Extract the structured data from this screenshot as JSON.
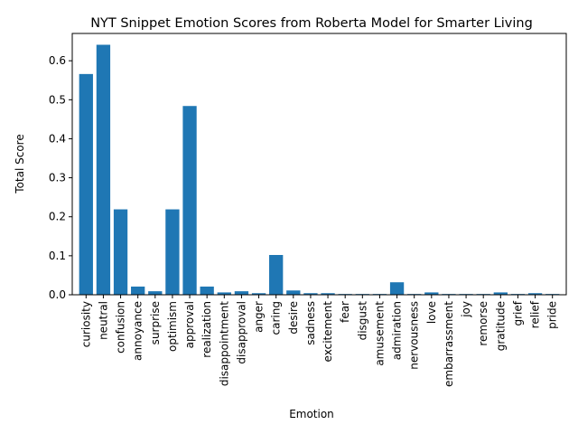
{
  "chart_data": {
    "type": "bar",
    "title": "NYT Snippet Emotion Scores from Roberta Model for Smarter Living",
    "xlabel": "Emotion",
    "ylabel": "Total Score",
    "ylim": [
      0,
      0.67
    ],
    "yticks": [
      "0.0",
      "0.1",
      "0.2",
      "0.3",
      "0.4",
      "0.5",
      "0.6"
    ],
    "grid": false,
    "bar_color": "#1f77b4",
    "categories": [
      "curiosity",
      "neutral",
      "confusion",
      "annoyance",
      "surprise",
      "optimism",
      "approval",
      "realization",
      "disappointment",
      "disapproval",
      "anger",
      "caring",
      "desire",
      "sadness",
      "excitement",
      "fear",
      "disgust",
      "amusement",
      "admiration",
      "nervousness",
      "love",
      "embarrassment",
      "joy",
      "remorse",
      "gratitude",
      "grief",
      "relief",
      "pride"
    ],
    "values": [
      0.566,
      0.641,
      0.219,
      0.021,
      0.009,
      0.219,
      0.484,
      0.021,
      0.006,
      0.009,
      0.004,
      0.102,
      0.011,
      0.004,
      0.004,
      0.002,
      0.002,
      0.002,
      0.032,
      0.002,
      0.006,
      0.002,
      0.002,
      0.002,
      0.006,
      0.002,
      0.004,
      0.002
    ]
  }
}
